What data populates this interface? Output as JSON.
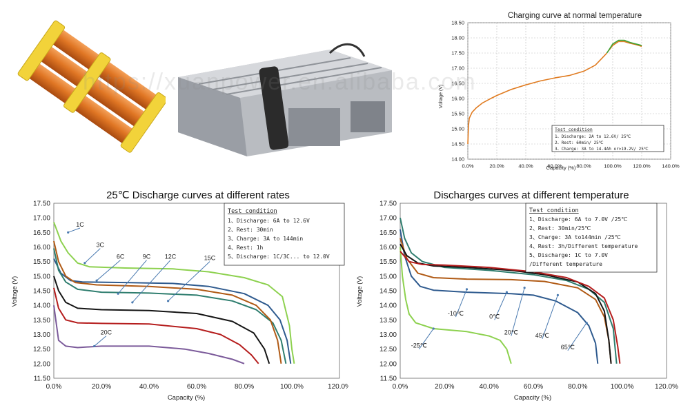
{
  "photos": {
    "cells_pack": "battery-cells-photo",
    "battery_module": "battery-module-photo"
  },
  "watermark": "https://xuanpower.en.alibaba.com",
  "chart_data": [
    {
      "id": "charge",
      "type": "line",
      "title": "Charging curve at normal temperature",
      "xlabel": "Capacity (%)",
      "ylabel": "Voltage (V)",
      "xlim": [
        0,
        140
      ],
      "ylim": [
        14.0,
        18.5
      ],
      "xticks": [
        0,
        20,
        40,
        60,
        80,
        100,
        120,
        140
      ],
      "xtick_labels": [
        "0.0%",
        "20.0%",
        "40.0%",
        "60.0%",
        "80.0%",
        "100.0%",
        "120.0%",
        "140.0%"
      ],
      "yticks": [
        14.0,
        14.5,
        15.0,
        15.5,
        16.0,
        16.5,
        17.0,
        17.5,
        18.0,
        18.5
      ],
      "ytick_labels": [
        "14.00",
        "14.50",
        "15.00",
        "15.50",
        "16.00",
        "16.50",
        "17.00",
        "17.50",
        "18.00",
        "18.50"
      ],
      "grid": true,
      "test_condition": {
        "title": "Test condition",
        "lines": [
          "1、Discharge: 2A to 12.6V/ 25℃",
          "2、Rest: 60min/ 25℃",
          "3、Charge: 3A  to 14.4Ah or>19.2V/ 25℃"
        ]
      },
      "series": [
        {
          "color": "#e07b20",
          "points": [
            [
              0,
              14.5
            ],
            [
              0.5,
              15.1
            ],
            [
              1,
              15.35
            ],
            [
              3,
              15.55
            ],
            [
              6,
              15.7
            ],
            [
              10,
              15.85
            ],
            [
              15,
              15.98
            ],
            [
              20,
              16.1
            ],
            [
              30,
              16.3
            ],
            [
              40,
              16.45
            ],
            [
              50,
              16.58
            ],
            [
              60,
              16.68
            ],
            [
              70,
              16.76
            ],
            [
              80,
              16.9
            ],
            [
              88,
              17.1
            ],
            [
              95,
              17.45
            ],
            [
              100,
              17.75
            ],
            [
              104,
              17.88
            ],
            [
              108,
              17.88
            ],
            [
              112,
              17.82
            ],
            [
              116,
              17.78
            ],
            [
              120,
              17.72
            ]
          ]
        },
        {
          "color": "#3aa335",
          "points": [
            [
              96,
              17.5
            ],
            [
              100,
              17.8
            ],
            [
              104,
              17.92
            ],
            [
              108,
              17.92
            ],
            [
              112,
              17.85
            ],
            [
              116,
              17.8
            ],
            [
              120,
              17.75
            ]
          ]
        }
      ]
    },
    {
      "id": "rates",
      "type": "line",
      "title": "25℃ Discharge curves at different rates",
      "xlabel": "Capacity (%)",
      "ylabel": "Voltage (V)",
      "xlim": [
        0,
        120
      ],
      "ylim": [
        11.5,
        17.5
      ],
      "xticks": [
        0,
        20,
        40,
        60,
        80,
        100,
        120
      ],
      "xtick_labels": [
        "0.0%",
        "20.0%",
        "40.0%",
        "60.0%",
        "80.0%",
        "100.0%",
        "120.0%"
      ],
      "yticks": [
        11.5,
        12.0,
        12.5,
        13.0,
        13.5,
        14.0,
        14.5,
        15.0,
        15.5,
        16.0,
        16.5,
        17.0,
        17.5
      ],
      "ytick_labels": [
        "11.50",
        "12.00",
        "12.50",
        "13.00",
        "13.50",
        "14.00",
        "14.50",
        "15.00",
        "15.50",
        "16.00",
        "16.50",
        "17.00",
        "17.50"
      ],
      "grid": false,
      "test_condition": {
        "title": "Test condition",
        "lines": [
          "1、Discharge: 6A to 12.6V",
          "2、Rest: 30min",
          "3、Charge: 3A to 144min",
          "4、Rest: 1h",
          "5、Discharge: 1C/3C... to 12.0V"
        ]
      },
      "labels": [
        {
          "text": "1C",
          "x": 11,
          "y": 16.65,
          "ax": 6,
          "ay": 16.5
        },
        {
          "text": "3C",
          "x": 19.5,
          "y": 15.95,
          "ax": 13,
          "ay": 15.45
        },
        {
          "text": "6C",
          "x": 28,
          "y": 15.55,
          "ax": 18,
          "ay": 14.85
        },
        {
          "text": "9C",
          "x": 39,
          "y": 15.55,
          "ax": 27,
          "ay": 14.4
        },
        {
          "text": "12C",
          "x": 49,
          "y": 15.55,
          "ax": 33,
          "ay": 14.1
        },
        {
          "text": "15C",
          "x": 65.5,
          "y": 15.5,
          "ax": 48,
          "ay": 14.15
        },
        {
          "text": "20C",
          "x": 22,
          "y": 12.95,
          "ax": 17,
          "ay": 12.6
        }
      ],
      "series": [
        {
          "name": "1C",
          "color": "#8dd14f",
          "points": [
            [
              0,
              16.85
            ],
            [
              3,
              16.2
            ],
            [
              6,
              15.8
            ],
            [
              10,
              15.45
            ],
            [
              15,
              15.32
            ],
            [
              30,
              15.28
            ],
            [
              50,
              15.25
            ],
            [
              65,
              15.15
            ],
            [
              80,
              14.95
            ],
            [
              90,
              14.7
            ],
            [
              96,
              14.3
            ],
            [
              99,
              13.3
            ],
            [
              100,
              12.5
            ],
            [
              101,
              12.0
            ]
          ]
        },
        {
          "name": "3C",
          "color": "#2e5a8e",
          "points": [
            [
              0,
              15.6
            ],
            [
              3,
              15.1
            ],
            [
              7,
              14.85
            ],
            [
              12,
              14.8
            ],
            [
              30,
              14.78
            ],
            [
              50,
              14.75
            ],
            [
              65,
              14.65
            ],
            [
              80,
              14.4
            ],
            [
              90,
              14.0
            ],
            [
              95,
              13.5
            ],
            [
              98,
              12.8
            ],
            [
              99.5,
              12.0
            ]
          ]
        },
        {
          "name": "6C",
          "color": "#2e7d6e",
          "points": [
            [
              0,
              15.95
            ],
            [
              2,
              15.2
            ],
            [
              5,
              14.8
            ],
            [
              10,
              14.55
            ],
            [
              20,
              14.45
            ],
            [
              40,
              14.42
            ],
            [
              60,
              14.35
            ],
            [
              75,
              14.15
            ],
            [
              85,
              13.85
            ],
            [
              92,
              13.4
            ],
            [
              95.5,
              12.8
            ],
            [
              97.5,
              12.0
            ]
          ]
        },
        {
          "name": "9C",
          "color": "#b05a15",
          "points": [
            [
              0,
              16.2
            ],
            [
              2,
              15.5
            ],
            [
              5,
              15.0
            ],
            [
              9,
              14.78
            ],
            [
              18,
              14.7
            ],
            [
              40,
              14.65
            ],
            [
              60,
              14.55
            ],
            [
              75,
              14.35
            ],
            [
              85,
              14.0
            ],
            [
              91,
              13.5
            ],
            [
              94,
              12.8
            ],
            [
              95.5,
              12.0
            ]
          ]
        },
        {
          "name": "12C",
          "color": "#141414",
          "points": [
            [
              0,
              15.0
            ],
            [
              2,
              14.5
            ],
            [
              5,
              14.1
            ],
            [
              10,
              13.9
            ],
            [
              20,
              13.85
            ],
            [
              40,
              13.82
            ],
            [
              60,
              13.72
            ],
            [
              75,
              13.45
            ],
            [
              84,
              13.05
            ],
            [
              88.5,
              12.5
            ],
            [
              90.5,
              12.0
            ]
          ]
        },
        {
          "name": "15C",
          "color": "#b51d1d",
          "points": [
            [
              0,
              14.6
            ],
            [
              2,
              13.9
            ],
            [
              5,
              13.5
            ],
            [
              10,
              13.4
            ],
            [
              20,
              13.38
            ],
            [
              40,
              13.36
            ],
            [
              60,
              13.2
            ],
            [
              70,
              13.0
            ],
            [
              78,
              12.65
            ],
            [
              83,
              12.3
            ],
            [
              86,
              12.0
            ]
          ]
        },
        {
          "name": "20C",
          "color": "#7b5a9a",
          "points": [
            [
              0,
              14.0
            ],
            [
              2,
              12.8
            ],
            [
              5,
              12.6
            ],
            [
              10,
              12.55
            ],
            [
              20,
              12.6
            ],
            [
              40,
              12.6
            ],
            [
              55,
              12.5
            ],
            [
              65,
              12.35
            ],
            [
              75,
              12.15
            ],
            [
              80,
              12.0
            ]
          ]
        }
      ]
    },
    {
      "id": "temps",
      "type": "line",
      "title": "Discharges curves at different temperature",
      "xlabel": "Capacity (%)",
      "ylabel": "Voltage (V)",
      "xlim": [
        0,
        120
      ],
      "ylim": [
        11.5,
        17.5
      ],
      "xticks": [
        0,
        20,
        40,
        60,
        80,
        100,
        120
      ],
      "xtick_labels": [
        "0.0%",
        "20.0%",
        "40.0%",
        "60.0%",
        "80.0%",
        "100.0%",
        "120.0%"
      ],
      "yticks": [
        11.5,
        12.0,
        12.5,
        13.0,
        13.5,
        14.0,
        14.5,
        15.0,
        15.5,
        16.0,
        16.5,
        17.0,
        17.5
      ],
      "ytick_labels": [
        "11.50",
        "12.00",
        "12.50",
        "13.00",
        "13.50",
        "14.00",
        "14.50",
        "15.00",
        "15.50",
        "16.00",
        "16.50",
        "17.00",
        "17.50"
      ],
      "grid": false,
      "test_condition": {
        "title": "Test condition",
        "lines": [
          "1、Discharge: 6A to 7.0V /25℃",
          "2、Rest: 30min/25℃",
          "3、Charge: 3A to144min /25℃",
          "4、Rest: 3h/Different temperature",
          "5、Discharge: 1C to 7.0V",
          "   /Different temperature"
        ]
      },
      "labels": [
        {
          "text": "-10℃",
          "x": 25,
          "y": 13.6,
          "ax": 30,
          "ay": 14.55
        },
        {
          "text": "0℃",
          "x": 42.5,
          "y": 13.5,
          "ax": 48,
          "ay": 14.45
        },
        {
          "text": "20℃",
          "x": 50,
          "y": 12.95,
          "ax": 56,
          "ay": 14.6
        },
        {
          "text": "45℃",
          "x": 64,
          "y": 12.85,
          "ax": 71,
          "ay": 14.35
        },
        {
          "text": "65℃",
          "x": 75.5,
          "y": 12.45,
          "ax": 84,
          "ay": 13.4
        },
        {
          "text": "-25℃",
          "x": 8.5,
          "y": 12.5,
          "ax": 15,
          "ay": 13.2
        }
      ],
      "series": [
        {
          "name": "-25℃",
          "color": "#8dd14f",
          "points": [
            [
              0,
              16.0
            ],
            [
              1,
              15.0
            ],
            [
              2.5,
              14.2
            ],
            [
              4,
              13.7
            ],
            [
              7,
              13.4
            ],
            [
              15,
              13.2
            ],
            [
              30,
              13.1
            ],
            [
              40,
              12.95
            ],
            [
              45,
              12.8
            ],
            [
              48,
              12.5
            ],
            [
              50,
              12.0
            ]
          ]
        },
        {
          "name": "-10℃",
          "color": "#2e5a8e",
          "points": [
            [
              0,
              16.6
            ],
            [
              2,
              15.7
            ],
            [
              5,
              15.0
            ],
            [
              9,
              14.65
            ],
            [
              15,
              14.52
            ],
            [
              30,
              14.45
            ],
            [
              50,
              14.4
            ],
            [
              60,
              14.35
            ],
            [
              70,
              14.15
            ],
            [
              80,
              13.75
            ],
            [
              85,
              13.3
            ],
            [
              88,
              12.7
            ],
            [
              89,
              12.0
            ]
          ]
        },
        {
          "name": "0℃",
          "color": "#b05a15",
          "points": [
            [
              0,
              16.3
            ],
            [
              3,
              15.6
            ],
            [
              8,
              15.1
            ],
            [
              15,
              14.95
            ],
            [
              30,
              14.9
            ],
            [
              50,
              14.88
            ],
            [
              65,
              14.82
            ],
            [
              80,
              14.6
            ],
            [
              88,
              14.2
            ],
            [
              92,
              13.6
            ],
            [
              94,
              12.8
            ],
            [
              95,
              12.0
            ]
          ]
        },
        {
          "name": "20℃",
          "color": "#2e7d6e",
          "points": [
            [
              0,
              17.0
            ],
            [
              2,
              16.3
            ],
            [
              5,
              15.8
            ],
            [
              10,
              15.5
            ],
            [
              20,
              15.3
            ],
            [
              40,
              15.2
            ],
            [
              60,
              15.05
            ],
            [
              75,
              14.85
            ],
            [
              85,
              14.55
            ],
            [
              92,
              14.1
            ],
            [
              96,
              13.2
            ],
            [
              97.5,
              12.0
            ]
          ]
        },
        {
          "name": "45℃",
          "color": "#141414",
          "points": [
            [
              0,
              16.1
            ],
            [
              3,
              15.7
            ],
            [
              8,
              15.45
            ],
            [
              15,
              15.35
            ],
            [
              30,
              15.3
            ],
            [
              50,
              15.2
            ],
            [
              65,
              15.05
            ],
            [
              80,
              14.8
            ],
            [
              88,
              14.4
            ],
            [
              92,
              13.8
            ],
            [
              94,
              12.8
            ],
            [
              95,
              12.0
            ]
          ]
        },
        {
          "name": "65℃",
          "color": "#b51d1d",
          "points": [
            [
              0,
              15.85
            ],
            [
              4,
              15.5
            ],
            [
              10,
              15.4
            ],
            [
              20,
              15.38
            ],
            [
              40,
              15.3
            ],
            [
              60,
              15.15
            ],
            [
              75,
              14.95
            ],
            [
              85,
              14.65
            ],
            [
              92,
              14.25
            ],
            [
              96,
              13.5
            ],
            [
              98,
              12.6
            ],
            [
              99,
              12.0
            ]
          ]
        }
      ]
    }
  ]
}
